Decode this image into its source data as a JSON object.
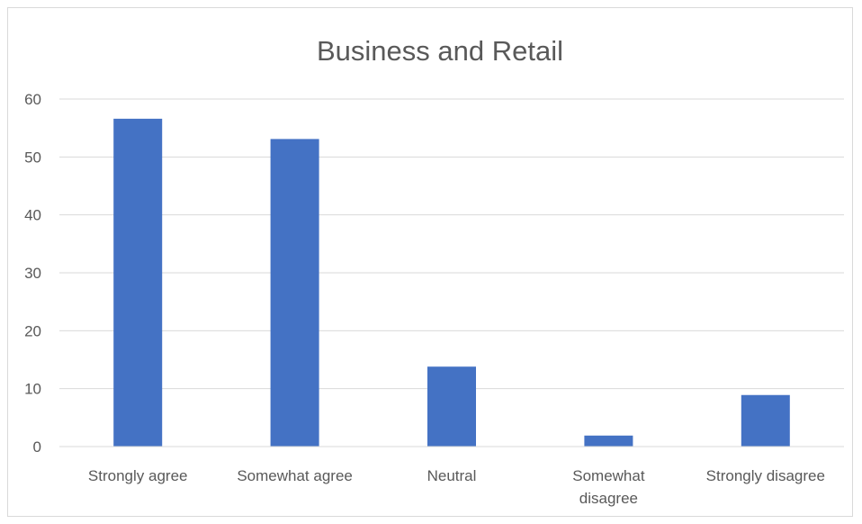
{
  "chart_data": {
    "type": "bar",
    "title": "Business and Retail",
    "categories": [
      "Strongly agree",
      "Somewhat agree",
      "Neutral",
      "Somewhat disagree",
      "Strongly disagree"
    ],
    "category_lines": [
      [
        "Strongly agree"
      ],
      [
        "Somewhat agree"
      ],
      [
        "Neutral"
      ],
      [
        "Somewhat",
        "disagree"
      ],
      [
        "Strongly disagree"
      ]
    ],
    "values": [
      56.6,
      53.1,
      13.8,
      1.9,
      8.9
    ],
    "ylim": [
      0,
      60
    ],
    "yticks": [
      "0",
      "10",
      "20",
      "30",
      "40",
      "50",
      "60"
    ],
    "xlabel": "",
    "ylabel": "",
    "grid": true,
    "legend": "none",
    "bar_color": "#4472c4"
  }
}
